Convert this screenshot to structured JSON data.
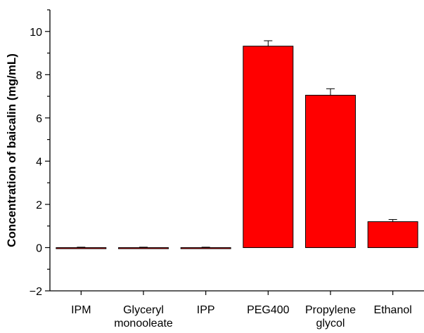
{
  "chart_data": {
    "type": "bar",
    "title": "",
    "xlabel": "",
    "ylabel": "Concentration of baicalin (mg/mL)",
    "ylim": [
      -2,
      11
    ],
    "yticks": [
      -2,
      0,
      2,
      4,
      6,
      8,
      10
    ],
    "grid": false,
    "legend": "none",
    "categories": [
      [
        "IPM"
      ],
      [
        "Glyceryl",
        "monooleate"
      ],
      [
        "IPP"
      ],
      [
        "PEG400"
      ],
      [
        "Propylene",
        "glycol"
      ],
      [
        "Ethanol"
      ]
    ],
    "values": [
      0.0,
      0.0,
      0.0,
      9.32,
      7.05,
      1.2
    ],
    "errors": [
      0.02,
      0.02,
      0.02,
      0.25,
      0.3,
      0.1
    ],
    "bar_color": "#ff0000",
    "edge_color": "#000000"
  }
}
